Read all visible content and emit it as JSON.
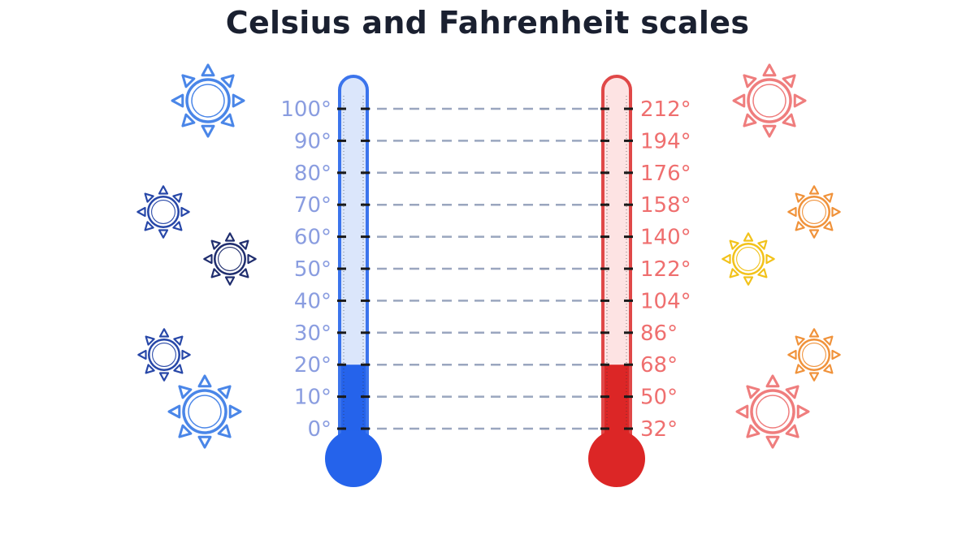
{
  "title": "Celsius and Fahrenheit scales",
  "celsius": {
    "labels": [
      "100°",
      "90°",
      "80°",
      "70°",
      "60°",
      "50°",
      "40°",
      "30°",
      "20°",
      "10°",
      "0°"
    ],
    "fill_level_degrees": 20,
    "colors": {
      "label": "#8a9de0",
      "tube_fill": "#2563eb",
      "tube_empty": "#dbe6fb",
      "outline": "#3b74ec"
    }
  },
  "fahrenheit": {
    "labels": [
      "212°",
      "194°",
      "176°",
      "158°",
      "140°",
      "122°",
      "104°",
      "86°",
      "68°",
      "50°",
      "32°"
    ],
    "fill_level_degrees": 68,
    "colors": {
      "label": "#ef6f6f",
      "tube_fill": "#dc2626",
      "tube_empty": "#fde3e3",
      "outline": "#e04848"
    }
  },
  "connector_color": "#9aa6bf",
  "suns": [
    {
      "name": "sun-icon-left-1",
      "color": "#4a86e8"
    },
    {
      "name": "sun-icon-left-2",
      "color": "#2747a8"
    },
    {
      "name": "sun-icon-left-3",
      "color": "#1f2d6e"
    },
    {
      "name": "sun-icon-left-4",
      "color": "#2747a8"
    },
    {
      "name": "sun-icon-left-5",
      "color": "#4a86e8"
    },
    {
      "name": "sun-icon-right-1",
      "color": "#ef7d7d"
    },
    {
      "name": "sun-icon-right-2",
      "color": "#f0923a"
    },
    {
      "name": "sun-icon-right-3",
      "color": "#f2c21a"
    },
    {
      "name": "sun-icon-right-4",
      "color": "#f0923a"
    },
    {
      "name": "sun-icon-right-5",
      "color": "#ef7d7d"
    }
  ]
}
